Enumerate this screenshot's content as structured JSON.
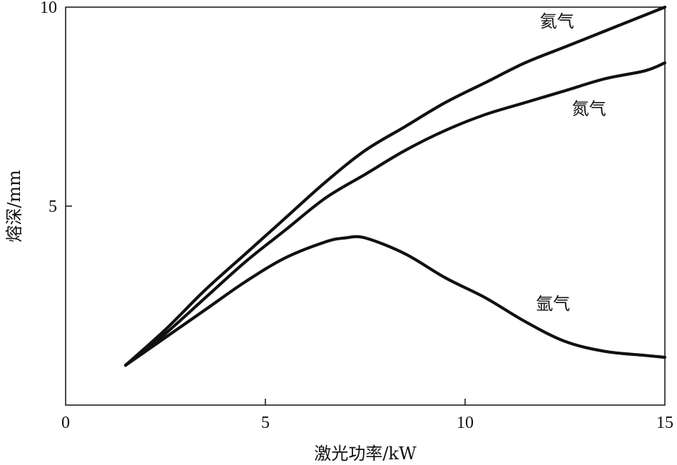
{
  "chart_data": {
    "type": "line",
    "xlabel": "激光功率/kW",
    "ylabel": "熔深/mm",
    "xlim": [
      0,
      15
    ],
    "ylim": [
      0,
      10
    ],
    "xticks": [
      0,
      5,
      10,
      15
    ],
    "yticks": [
      5,
      10
    ],
    "grid": false,
    "series": [
      {
        "name": "氦气",
        "x": [
          1.5,
          2.5,
          3.5,
          4.5,
          5.5,
          6.5,
          7.5,
          8.5,
          9.5,
          10.5,
          11.5,
          12.5,
          13.5,
          14.5,
          15.0
        ],
        "y": [
          1.0,
          1.9,
          2.9,
          3.8,
          4.7,
          5.6,
          6.4,
          7.0,
          7.6,
          8.1,
          8.6,
          9.0,
          9.4,
          9.8,
          10.0
        ]
      },
      {
        "name": "氮气",
        "x": [
          1.5,
          2.5,
          3.5,
          4.5,
          5.5,
          6.5,
          7.5,
          8.5,
          9.5,
          10.5,
          11.5,
          12.5,
          13.5,
          14.5,
          15.0
        ],
        "y": [
          1.0,
          1.8,
          2.7,
          3.6,
          4.4,
          5.2,
          5.8,
          6.4,
          6.9,
          7.3,
          7.6,
          7.9,
          8.2,
          8.4,
          8.6
        ]
      },
      {
        "name": "氩气",
        "x": [
          1.5,
          2.5,
          3.5,
          4.5,
          5.5,
          6.5,
          7.0,
          7.5,
          8.5,
          9.5,
          10.5,
          11.5,
          12.5,
          13.5,
          14.5,
          15.0
        ],
        "y": [
          1.0,
          1.7,
          2.4,
          3.1,
          3.7,
          4.1,
          4.2,
          4.2,
          3.8,
          3.2,
          2.7,
          2.1,
          1.6,
          1.35,
          1.25,
          1.2
        ]
      }
    ]
  }
}
